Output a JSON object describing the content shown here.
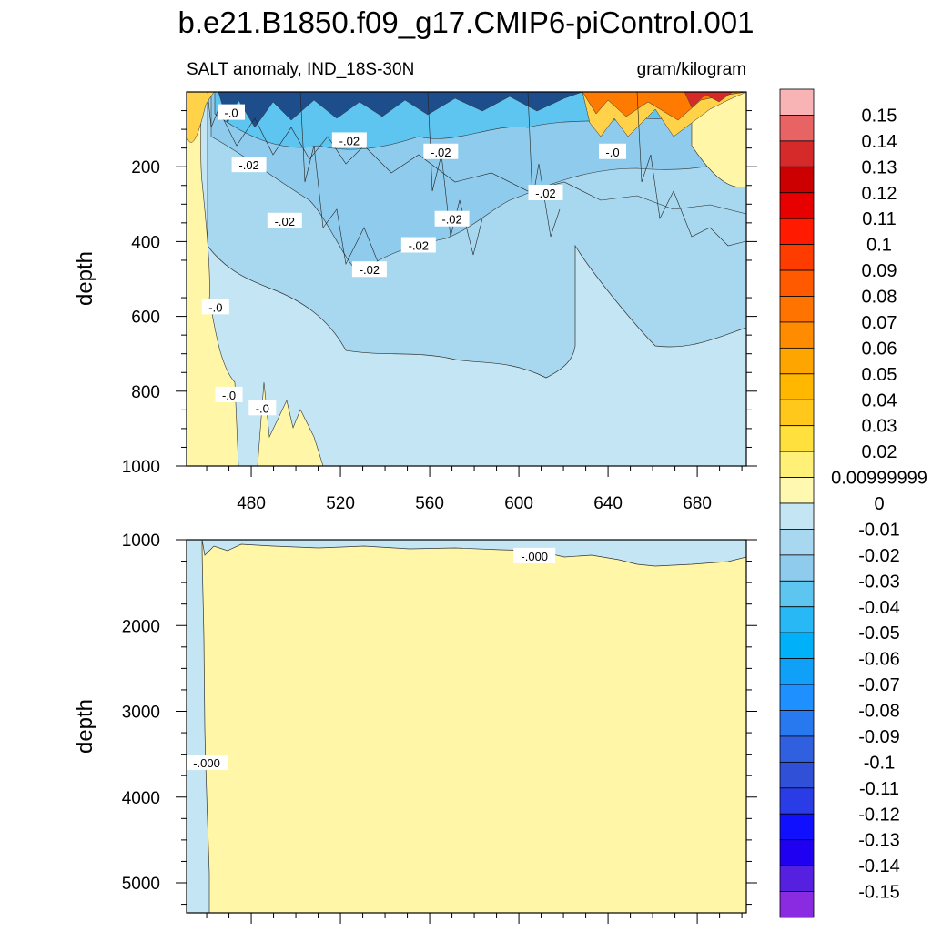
{
  "title": "b.e21.B1850.f09_g17.CMIP6-piControl.001",
  "chart_data": [
    {
      "type": "heatmap",
      "panel": "upper",
      "subtitle_left": "SALT anomaly, IND_18S-30N",
      "subtitle_right": "gram/kilogram",
      "xlabel": "",
      "ylabel": "depth",
      "xlim": [
        451,
        702
      ],
      "ylim": [
        1000,
        0
      ],
      "xticks": [
        480,
        520,
        560,
        600,
        640,
        680
      ],
      "xtick_labels": [
        "480",
        "520",
        "560",
        "600",
        "640",
        "680"
      ],
      "yticks": [
        200,
        400,
        600,
        800,
        1000
      ],
      "ytick_labels": [
        "200",
        "400",
        "600",
        "800",
        "1000"
      ],
      "contour_labels": [
        {
          "text": "-.0",
          "x": 471,
          "y": 55
        },
        {
          "text": "-.02",
          "x": 479,
          "y": 195
        },
        {
          "text": "-.02",
          "x": 524,
          "y": 130
        },
        {
          "text": "-.02",
          "x": 565,
          "y": 160
        },
        {
          "text": "-.0",
          "x": 642,
          "y": 160
        },
        {
          "text": "-.02",
          "x": 612,
          "y": 270
        },
        {
          "text": "-.02",
          "x": 495,
          "y": 345
        },
        {
          "text": "-.02",
          "x": 570,
          "y": 340
        },
        {
          "text": "-.02",
          "x": 555,
          "y": 410
        },
        {
          "text": "-.02",
          "x": 533,
          "y": 475
        },
        {
          "text": "-.0",
          "x": 464,
          "y": 575
        },
        {
          "text": "-.0",
          "x": 470,
          "y": 810
        },
        {
          "text": "-.0",
          "x": 485,
          "y": 845
        }
      ]
    },
    {
      "type": "heatmap",
      "panel": "lower",
      "xlabel": "",
      "ylabel": "depth",
      "xlim": [
        451,
        702
      ],
      "ylim": [
        5350,
        1000
      ],
      "yticks": [
        1000,
        2000,
        3000,
        4000,
        5000
      ],
      "ytick_labels": [
        "1000",
        "2000",
        "3000",
        "4000",
        "5000"
      ],
      "contour_labels": [
        {
          "text": "-.000",
          "x": 607,
          "y": 1190
        },
        {
          "text": "-.000",
          "x": 460,
          "y": 3600
        }
      ]
    }
  ],
  "colorbar": {
    "levels": [
      "0.15",
      "0.14",
      "0.13",
      "0.12",
      "0.11",
      "0.1",
      "0.09",
      "0.08",
      "0.07",
      "0.06",
      "0.05",
      "0.04",
      "0.03",
      "0.02",
      "0.00999999",
      "0",
      "-0.01",
      "-0.02",
      "-0.03",
      "-0.04",
      "-0.05",
      "-0.06",
      "-0.07",
      "-0.08",
      "-0.09",
      "-0.1",
      "-0.11",
      "-0.12",
      "-0.13",
      "-0.14",
      "-0.15"
    ],
    "colors": [
      "#f8b4b4",
      "#e86464",
      "#d62a2a",
      "#cc0000",
      "#e60000",
      "#ff1a00",
      "#ff3c00",
      "#ff5a00",
      "#ff7300",
      "#ff8c00",
      "#ffa500",
      "#ffb700",
      "#ffc81a",
      "#ffe03c",
      "#fff078",
      "#fff8b0",
      "#c4e6f4",
      "#a8d8ef",
      "#8ecbec",
      "#5ec4f0",
      "#29b8f6",
      "#00b0f8",
      "#10a0f8",
      "#1e90ff",
      "#2878f0",
      "#3060e0",
      "#3050d8",
      "#2a3ce6",
      "#1010ff",
      "#2000f0",
      "#5520e0",
      "#8a2be2"
    ]
  }
}
